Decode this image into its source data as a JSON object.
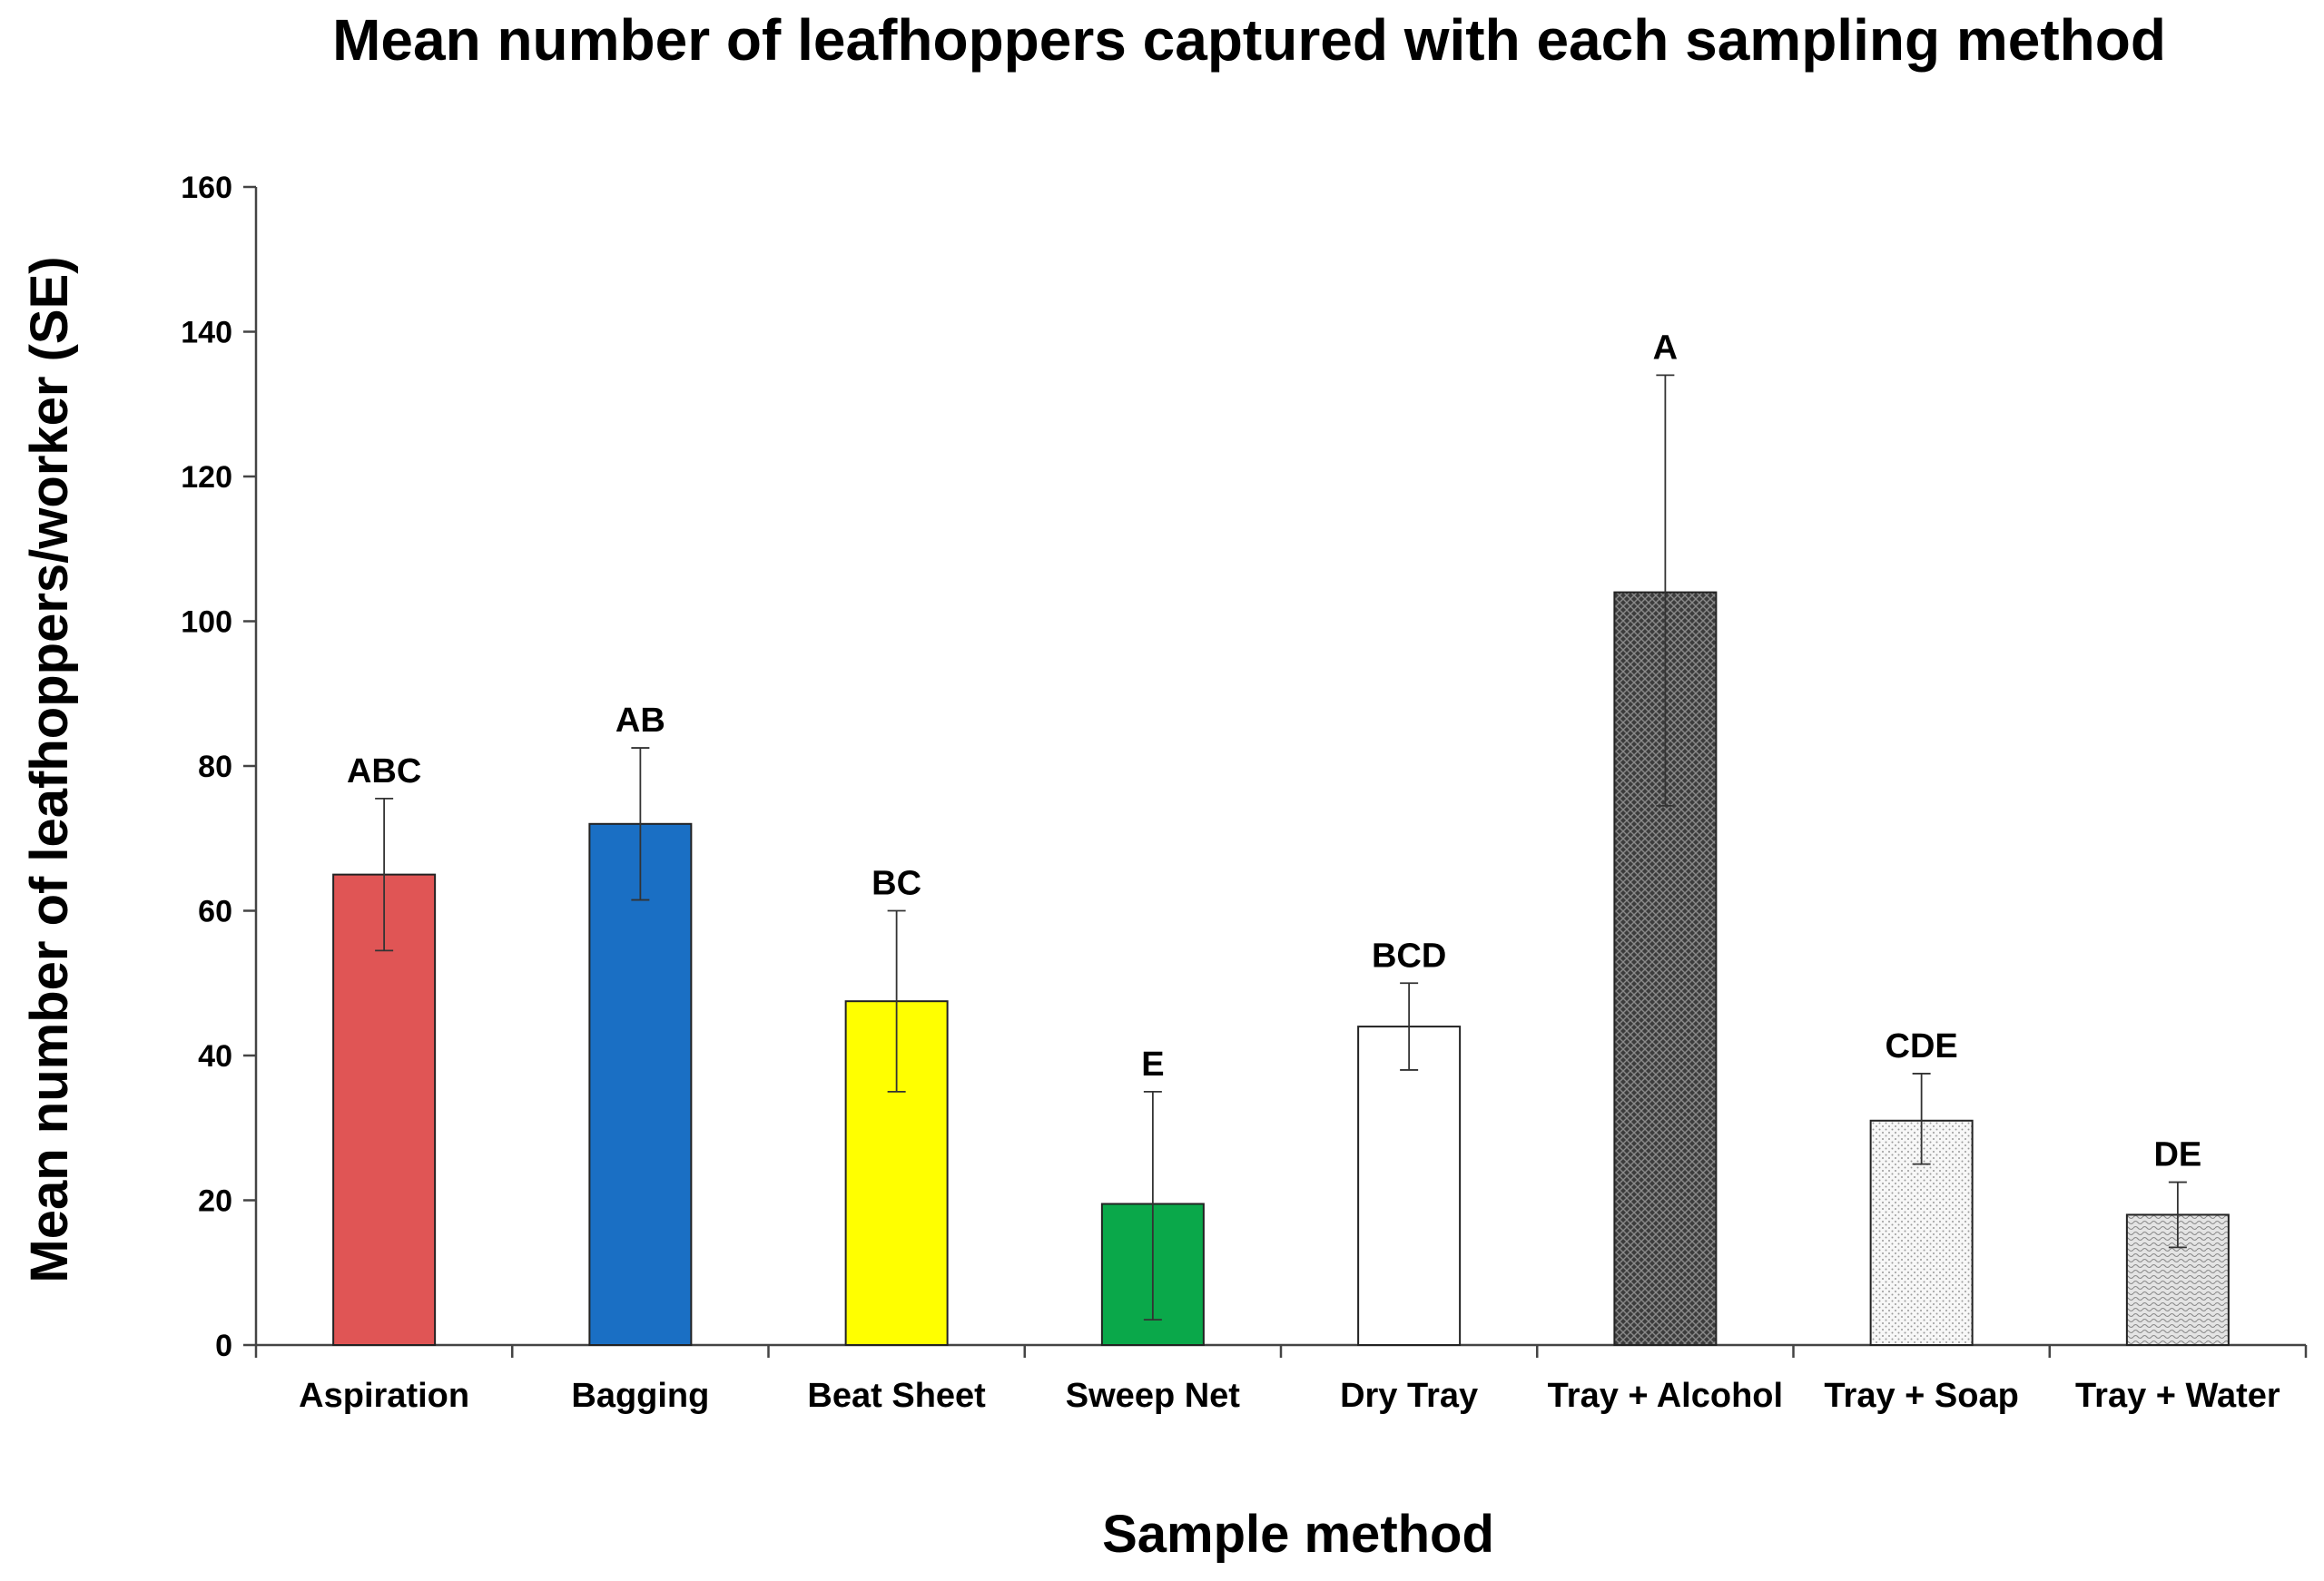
{
  "chart_data": {
    "type": "bar",
    "title": "Mean number of leafhoppers captured with each sampling method",
    "xlabel": "Sample method",
    "ylabel": "Mean number of leafhoppers/worker (SE)",
    "ylim": [
      0,
      160
    ],
    "yticks": [
      0,
      20,
      40,
      60,
      80,
      100,
      120,
      140,
      160
    ],
    "grid": false,
    "categories": [
      "Aspiration",
      "Bagging",
      "Beat Sheet",
      "Sweep Net",
      "Dry Tray",
      "Tray + Alcohol",
      "Tray + Soap",
      "Tray + Water"
    ],
    "values": [
      65,
      72,
      47.5,
      19.5,
      44,
      104,
      31,
      18
    ],
    "error_low": [
      54.5,
      61.5,
      35,
      3.5,
      38,
      74.5,
      25,
      13.5
    ],
    "error_high": [
      75.5,
      82.5,
      60,
      35,
      50,
      134,
      37.5,
      22.5
    ],
    "significance_letters": [
      "ABC",
      "AB",
      "BC",
      "E",
      "BCD",
      "A",
      "CDE",
      "DE"
    ],
    "bar_styles": [
      {
        "fill": "#e05555",
        "pattern": "solid"
      },
      {
        "fill": "#1a6fc4",
        "pattern": "solid"
      },
      {
        "fill": "#ffff00",
        "pattern": "solid"
      },
      {
        "fill": "#0aa84a",
        "pattern": "solid"
      },
      {
        "fill": "#ffffff",
        "pattern": "solid"
      },
      {
        "fill": "#3a3a3a",
        "pattern": "dark-crosshatch"
      },
      {
        "fill": "#f2f2f2",
        "pattern": "light-dots"
      },
      {
        "fill": "#d9d9d9",
        "pattern": "wave"
      }
    ]
  }
}
